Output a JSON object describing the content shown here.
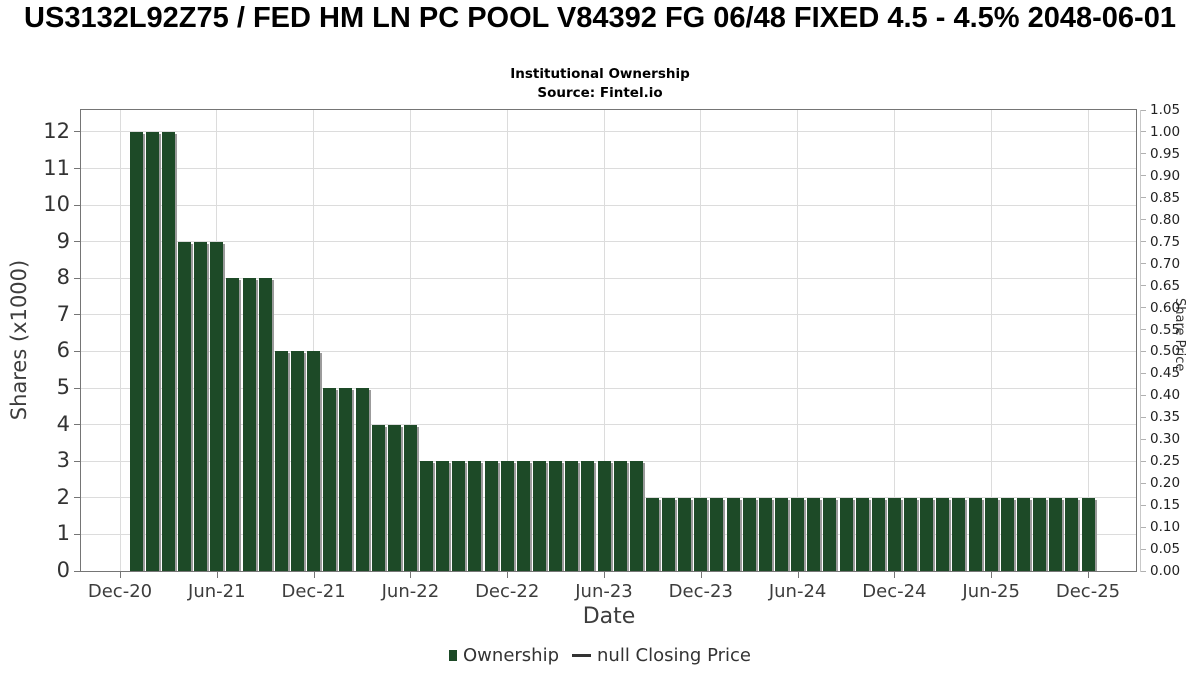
{
  "header": {
    "title": "US3132L92Z75 / FED HM LN PC POOL V84392 FG 06/48 FIXED 4.5 - 4.5% 2048-06-01",
    "subtitle": "Institutional Ownership",
    "source": "Source: Fintel.io"
  },
  "chart_data": {
    "type": "bar",
    "title": "Institutional Ownership",
    "xlabel": "Date",
    "ylabel_left": "Shares (x1000)",
    "ylabel_right": "Share Price",
    "grid": true,
    "legend_position": "bottom",
    "bar_color": "#1d4a27",
    "bar_shadow_color": "#9b9b9b",
    "y_left_axis_max": 12.6,
    "y_left_ticks": [
      0,
      1,
      2,
      3,
      4,
      5,
      6,
      7,
      8,
      9,
      10,
      11,
      12
    ],
    "y_right_tick_labels": [
      "0.00",
      "0.05",
      "0.10",
      "0.15",
      "0.20",
      "0.25",
      "0.30",
      "0.35",
      "0.40",
      "0.45",
      "0.50",
      "0.55",
      "0.60",
      "0.65",
      "0.70",
      "0.75",
      "0.80",
      "0.85",
      "0.90",
      "0.95",
      "1.00",
      "1.05"
    ],
    "x_tick_labels": [
      "Dec-20",
      "Jun-21",
      "Dec-21",
      "Jun-22",
      "Dec-22",
      "Jun-23",
      "Dec-23",
      "Jun-24",
      "Dec-24",
      "Jun-25",
      "Dec-25"
    ],
    "categories": [
      "Jan-21",
      "Feb-21",
      "Mar-21",
      "Apr-21",
      "May-21",
      "Jun-21",
      "Jul-21",
      "Aug-21",
      "Sep-21",
      "Oct-21",
      "Nov-21",
      "Dec-21",
      "Jan-22",
      "Feb-22",
      "Mar-22",
      "Apr-22",
      "May-22",
      "Jun-22",
      "Jul-22",
      "Aug-22",
      "Sep-22",
      "Oct-22",
      "Nov-22",
      "Dec-22",
      "Jan-23",
      "Feb-23",
      "Mar-23",
      "Apr-23",
      "May-23",
      "Jun-23",
      "Jul-23",
      "Aug-23",
      "Sep-23",
      "Oct-23",
      "Nov-23",
      "Dec-23",
      "Jan-24",
      "Feb-24",
      "Mar-24",
      "Apr-24",
      "May-24",
      "Jun-24",
      "Jul-24",
      "Aug-24",
      "Sep-24",
      "Oct-24",
      "Nov-24",
      "Dec-24",
      "Jan-25",
      "Feb-25",
      "Mar-25",
      "Apr-25",
      "May-25",
      "Jun-25",
      "Jul-25",
      "Aug-25",
      "Sep-25",
      "Oct-25",
      "Nov-25",
      "Dec-25"
    ],
    "values": [
      12,
      12,
      12,
      9,
      9,
      9,
      8,
      8,
      8,
      6,
      6,
      6,
      5,
      5,
      5,
      4,
      4,
      4,
      3,
      3,
      3,
      3,
      3,
      3,
      3,
      3,
      3,
      3,
      3,
      3,
      3,
      3,
      2,
      2,
      2,
      2,
      2,
      2,
      2,
      2,
      2,
      2,
      2,
      2,
      2,
      2,
      2,
      2,
      2,
      2,
      2,
      2,
      2,
      2,
      2,
      2,
      2,
      2,
      2,
      2
    ]
  },
  "legend": {
    "ownership_label": "Ownership",
    "price_label": "null Closing Price"
  }
}
